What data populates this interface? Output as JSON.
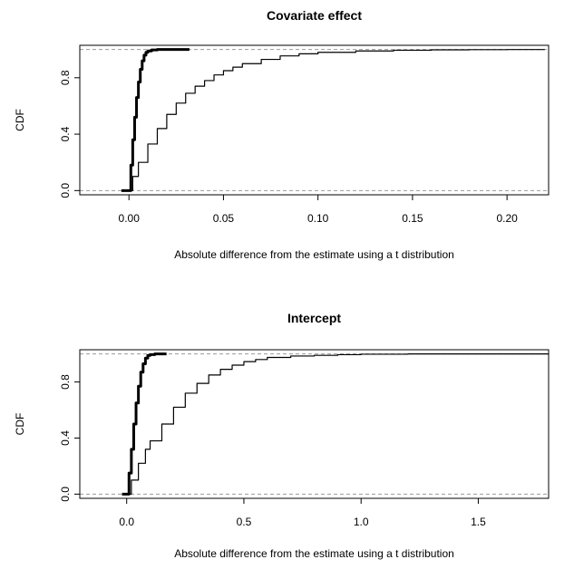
{
  "chart_data": [
    {
      "type": "line",
      "title": "Covariate effect",
      "xlabel": "Absolute difference from the estimate using a t distribution",
      "ylabel": "CDF",
      "xlim": [
        -0.026,
        0.222
      ],
      "ylim": [
        -0.03,
        1.03
      ],
      "x_ticks": [
        0.0,
        0.05,
        0.1,
        0.15,
        0.2
      ],
      "x_tick_labels": [
        "0.00",
        "0.05",
        "0.10",
        "0.15",
        "0.20"
      ],
      "y_ticks": [
        0.0,
        0.4,
        0.8
      ],
      "y_tick_labels": [
        "0.0",
        "0.4",
        "0.8"
      ],
      "reference_lines": [
        0,
        1
      ],
      "grid": false,
      "series": [
        {
          "style": "thick",
          "x": [
            -0.004,
            0.0,
            0.001,
            0.002,
            0.003,
            0.004,
            0.005,
            0.006,
            0.007,
            0.008,
            0.009,
            0.01,
            0.012,
            0.015,
            0.02,
            0.025,
            0.032
          ],
          "y": [
            0.0,
            0.0,
            0.18,
            0.36,
            0.52,
            0.66,
            0.77,
            0.86,
            0.92,
            0.96,
            0.98,
            0.99,
            0.997,
            1.0,
            1.0,
            1.0,
            1.0
          ]
        },
        {
          "style": "thin",
          "x": [
            -0.004,
            0.0,
            0.002,
            0.005,
            0.01,
            0.015,
            0.02,
            0.025,
            0.03,
            0.035,
            0.04,
            0.045,
            0.05,
            0.055,
            0.06,
            0.07,
            0.08,
            0.09,
            0.1,
            0.12,
            0.14,
            0.16,
            0.18,
            0.2,
            0.22
          ],
          "y": [
            0.0,
            0.0,
            0.1,
            0.2,
            0.33,
            0.44,
            0.54,
            0.62,
            0.69,
            0.74,
            0.78,
            0.82,
            0.85,
            0.875,
            0.9,
            0.93,
            0.955,
            0.97,
            0.98,
            0.99,
            0.995,
            0.998,
            0.999,
            1.0,
            1.0
          ]
        }
      ]
    },
    {
      "type": "line",
      "title": "Intercept",
      "xlabel": "Absolute difference from the estimate using a t distribution",
      "ylabel": "CDF",
      "xlim": [
        -0.2,
        1.8
      ],
      "ylim": [
        -0.03,
        1.03
      ],
      "x_ticks": [
        0.0,
        0.5,
        1.0,
        1.5
      ],
      "x_tick_labels": [
        "0.0",
        "0.5",
        "1.0",
        "1.5"
      ],
      "y_ticks": [
        0.0,
        0.4,
        0.8
      ],
      "y_tick_labels": [
        "0.0",
        "0.4",
        "0.8"
      ],
      "reference_lines": [
        0,
        1
      ],
      "grid": false,
      "series": [
        {
          "style": "thick",
          "x": [
            -0.02,
            0.0,
            0.01,
            0.02,
            0.03,
            0.04,
            0.05,
            0.06,
            0.07,
            0.08,
            0.09,
            0.1,
            0.12,
            0.15,
            0.17
          ],
          "y": [
            0.0,
            0.0,
            0.15,
            0.32,
            0.5,
            0.65,
            0.77,
            0.87,
            0.93,
            0.97,
            0.99,
            0.995,
            1.0,
            1.0,
            1.0
          ]
        },
        {
          "style": "thin",
          "x": [
            -0.02,
            0.0,
            0.02,
            0.05,
            0.08,
            0.1,
            0.15,
            0.2,
            0.25,
            0.3,
            0.35,
            0.4,
            0.45,
            0.5,
            0.55,
            0.6,
            0.7,
            0.8,
            0.9,
            1.0,
            1.2,
            1.4,
            1.6,
            1.8
          ],
          "y": [
            0.0,
            0.0,
            0.1,
            0.22,
            0.32,
            0.38,
            0.5,
            0.62,
            0.72,
            0.79,
            0.85,
            0.89,
            0.92,
            0.945,
            0.96,
            0.975,
            0.985,
            0.99,
            0.995,
            0.998,
            1.0,
            1.0,
            1.0,
            1.0
          ]
        }
      ]
    }
  ]
}
